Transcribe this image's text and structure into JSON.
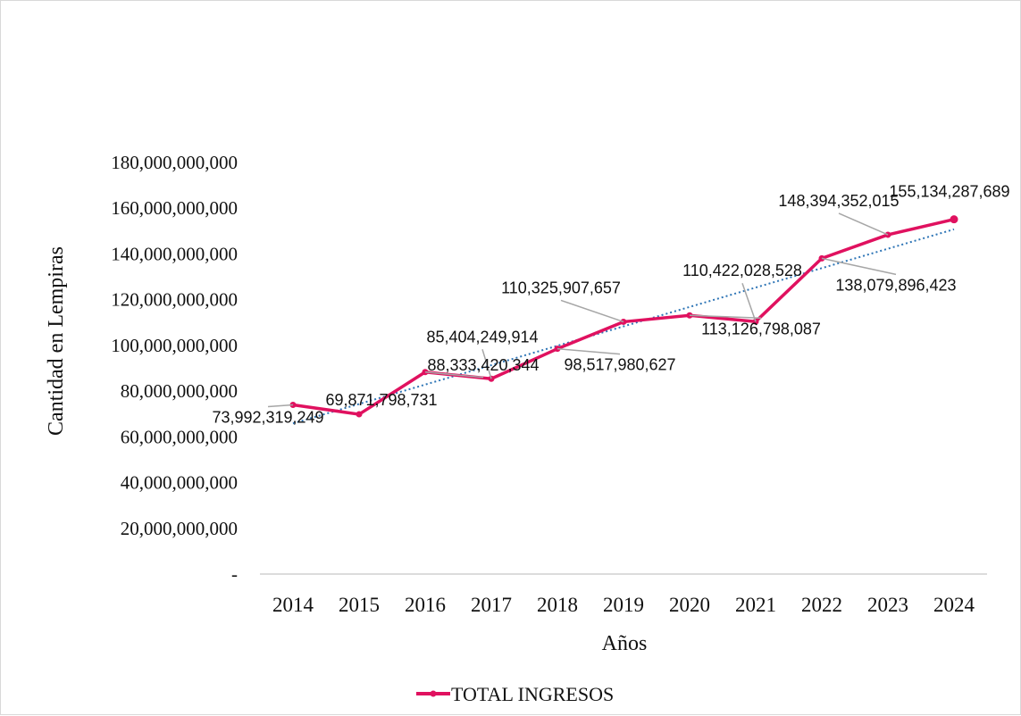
{
  "chart_data": {
    "type": "line",
    "title": "",
    "xlabel": "Años",
    "ylabel": "Cantidad en Lempiras",
    "categories": [
      "2014",
      "2015",
      "2016",
      "2017",
      "2018",
      "2019",
      "2020",
      "2021",
      "2022",
      "2023",
      "2024"
    ],
    "ylim": [
      0,
      180000000000
    ],
    "y_ticks": [
      0,
      20000000000,
      40000000000,
      60000000000,
      80000000000,
      100000000000,
      120000000000,
      140000000000,
      160000000000,
      180000000000
    ],
    "y_tick_labels": [
      "-",
      "20,000,000,000",
      "40,000,000,000",
      "60,000,000,000",
      "80,000,000,000",
      "100,000,000,000",
      "120,000,000,000",
      "140,000,000,000",
      "160,000,000,000",
      "180,000,000,000"
    ],
    "grid": false,
    "legend_position": "bottom",
    "trendline": {
      "type": "linear",
      "color": "#2e75b6",
      "style": "dotted"
    },
    "series": [
      {
        "name": "TOTAL INGRESOS",
        "color": "#e0115f",
        "values": [
          73992319249,
          69871798731,
          88333420344,
          85404249914,
          98517980627,
          110325907657,
          113126798087,
          110422028528,
          138079896423,
          148394352015,
          155134287689
        ],
        "data_labels": [
          "73,992,319,249",
          "69,871,798,731",
          "88,333,420,344",
          "85,404,249,914",
          "98,517,980,627",
          "110,325,907,657",
          "113,126,798,087",
          "110,422,028,528",
          "138,079,896,423",
          "148,394,352,015",
          "155,134,287,689"
        ]
      }
    ]
  }
}
